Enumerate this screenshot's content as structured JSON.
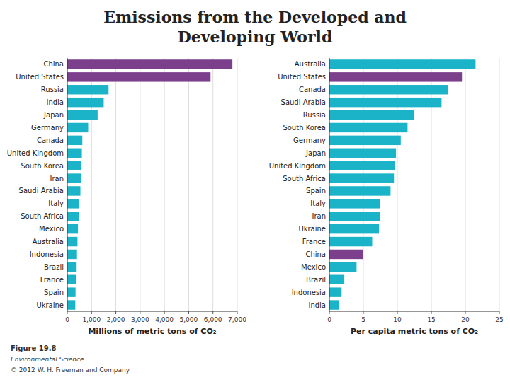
{
  "title": [
    "Emissions from the Developed and",
    "Developing World"
  ],
  "caption": [
    "Figure 19.8",
    "Environmental Science",
    "© 2012 W. H. Freeman and Company"
  ],
  "chart_data": [
    {
      "type": "bar",
      "orientation": "horizontal",
      "grid": true,
      "categories": [
        "China",
        "United States",
        "Russia",
        "India",
        "Japan",
        "Germany",
        "Canada",
        "United Kingdom",
        "South Korea",
        "Iran",
        "Saudi Arabia",
        "Italy",
        "South Africa",
        "Mexico",
        "Australia",
        "Indonesia",
        "Brazil",
        "France",
        "Spain",
        "Ukraine"
      ],
      "values": [
        6800,
        5900,
        1700,
        1500,
        1250,
        860,
        620,
        600,
        570,
        560,
        540,
        490,
        470,
        440,
        420,
        400,
        385,
        370,
        340,
        330
      ],
      "colors": [
        "#7b3f8c",
        "#7b3f8c",
        "#1ab3c8",
        "#1ab3c8",
        "#1ab3c8",
        "#1ab3c8",
        "#1ab3c8",
        "#1ab3c8",
        "#1ab3c8",
        "#1ab3c8",
        "#1ab3c8",
        "#1ab3c8",
        "#1ab3c8",
        "#1ab3c8",
        "#1ab3c8",
        "#1ab3c8",
        "#1ab3c8",
        "#1ab3c8",
        "#1ab3c8",
        "#1ab3c8"
      ],
      "xlabel": "Millions of metric tons of CO₂",
      "xlim": [
        0,
        7000
      ],
      "xticks": [
        0,
        {
          "value": 1000,
          "label": "1,000"
        },
        {
          "value": 2000,
          "label": "2,000"
        },
        {
          "value": 3000,
          "label": "3,000"
        },
        {
          "value": 4000,
          "label": "4,000"
        },
        {
          "value": 5000,
          "label": "5,000"
        },
        {
          "value": 6000,
          "label": "6,000"
        },
        {
          "value": 7000,
          "label": "7,000"
        }
      ]
    },
    {
      "type": "bar",
      "orientation": "horizontal",
      "grid": true,
      "categories": [
        "Australia",
        "United States",
        "Canada",
        "Saudi Arabia",
        "Russia",
        "South Korea",
        "Germany",
        "Japan",
        "United Kingdom",
        "South Africa",
        "Spain",
        "Italy",
        "Iran",
        "Ukraine",
        "France",
        "China",
        "Mexico",
        "Brazil",
        "Indonesia",
        "India"
      ],
      "values": [
        21.5,
        19.5,
        17.5,
        16.5,
        12.5,
        11.5,
        10.5,
        9.8,
        9.6,
        9.5,
        9.0,
        7.5,
        7.5,
        7.3,
        6.3,
        5.0,
        4.0,
        2.2,
        1.8,
        1.4
      ],
      "colors": [
        "#1ab3c8",
        "#7b3f8c",
        "#1ab3c8",
        "#1ab3c8",
        "#1ab3c8",
        "#1ab3c8",
        "#1ab3c8",
        "#1ab3c8",
        "#1ab3c8",
        "#1ab3c8",
        "#1ab3c8",
        "#1ab3c8",
        "#1ab3c8",
        "#1ab3c8",
        "#1ab3c8",
        "#7b3f8c",
        "#1ab3c8",
        "#1ab3c8",
        "#1ab3c8",
        "#1ab3c8"
      ],
      "xlabel": "Per capita metric tons of CO₂",
      "xlim": [
        0,
        25
      ],
      "xticks": [
        0,
        5,
        10,
        15,
        20,
        25
      ]
    }
  ]
}
